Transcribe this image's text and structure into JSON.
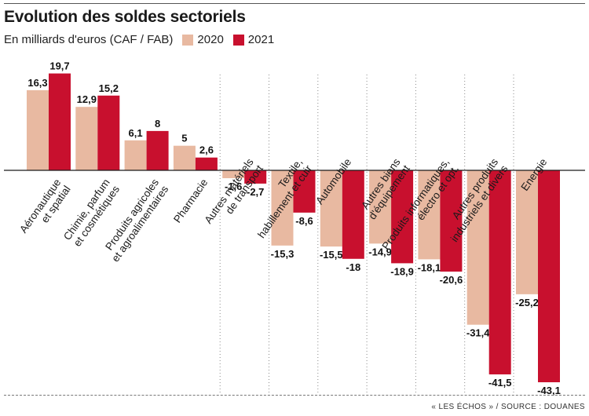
{
  "chart_data": {
    "type": "bar",
    "title": "Evolution des soldes sectoriels",
    "subtitle": "En milliards d'euros (CAF / FAB)",
    "legend_position": "top",
    "grid": false,
    "ylim": [
      -43.1,
      19.7
    ],
    "categories": [
      [
        "Aéronautique",
        "et spatial"
      ],
      [
        "Chimie, parfum",
        "et cosmétiques"
      ],
      [
        "Produits agricoles",
        "et agroalimentaires"
      ],
      [
        "Pharmacie"
      ],
      [
        "Autres matériels",
        "de transport"
      ],
      [
        "Textile,",
        "habillement et cuir"
      ],
      [
        "Automobile"
      ],
      [
        "Autres biens",
        "d'équipement"
      ],
      [
        "Produits informatiques,",
        "électro et opt."
      ],
      [
        "Autres produits",
        "industriels et divers"
      ],
      [
        "Energie"
      ]
    ],
    "series": [
      {
        "name": "2020",
        "color": "#e8b9a1",
        "values": [
          16.3,
          12.9,
          6.1,
          5,
          -1.6,
          -15.3,
          -15.5,
          -14.9,
          -18.1,
          -31.4,
          -25.2
        ],
        "labels": [
          "16,3",
          "12,9",
          "6,1",
          "5",
          "-1,6",
          "-15,3",
          "-15,5",
          "-14,9",
          "-18,1",
          "-31,4",
          "-25,2"
        ]
      },
      {
        "name": "2021",
        "color": "#c8102e",
        "values": [
          19.7,
          15.2,
          8,
          2.6,
          -2.7,
          -8.6,
          -18,
          -18.9,
          -20.6,
          -41.5,
          -43.1
        ],
        "labels": [
          "19,7",
          "15,2",
          "8",
          "2,6",
          "-2,7",
          "-8,6",
          "-18",
          "-18,9",
          "-20,6",
          "-41,5",
          "-43,1"
        ]
      }
    ]
  },
  "footer": {
    "source": "« LES ÉCHOS » / SOURCE : DOUANES"
  }
}
